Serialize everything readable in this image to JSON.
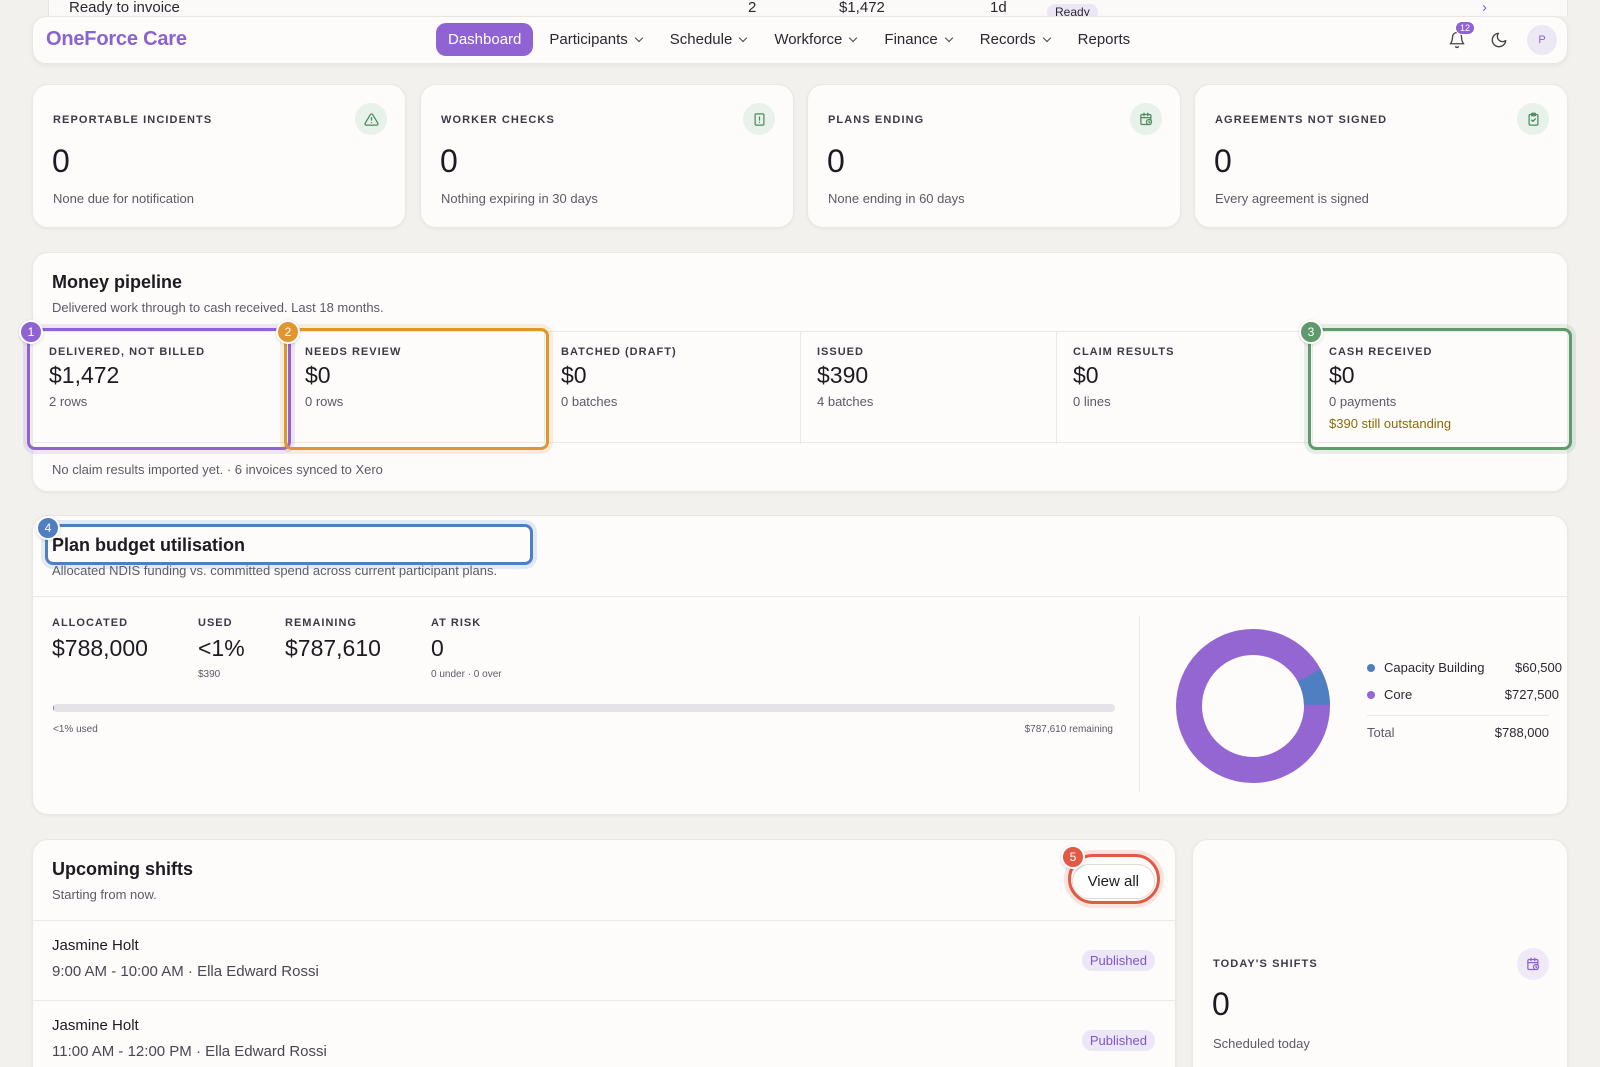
{
  "behind": {
    "label": "Ready to invoice",
    "count": "2",
    "amount": "$1,472",
    "age": "1d",
    "badge": "Ready",
    "chevron": "›"
  },
  "nav": {
    "brand": "OneForce Care",
    "items": [
      {
        "label": "Dashboard",
        "active": true
      },
      {
        "label": "Participants",
        "dropdown": true
      },
      {
        "label": "Schedule",
        "dropdown": true
      },
      {
        "label": "Workforce",
        "dropdown": true
      },
      {
        "label": "Finance",
        "dropdown": true
      },
      {
        "label": "Records",
        "dropdown": true
      },
      {
        "label": "Reports",
        "dropdown": false
      }
    ],
    "notification_count": "12",
    "avatar_initial": "P"
  },
  "stats": [
    {
      "label": "REPORTABLE INCIDENTS",
      "value": "0",
      "sub": "None due for notification",
      "icon": "alert-triangle-icon"
    },
    {
      "label": "WORKER CHECKS",
      "value": "0",
      "sub": "Nothing expiring in 30 days",
      "icon": "document-alert-icon"
    },
    {
      "label": "PLANS ENDING",
      "value": "0",
      "sub": "None ending in 60 days",
      "icon": "calendar-clock-icon"
    },
    {
      "label": "AGREEMENTS NOT SIGNED",
      "value": "0",
      "sub": "Every agreement is signed",
      "icon": "clipboard-check-icon"
    }
  ],
  "pipeline": {
    "title": "Money pipeline",
    "subtitle": "Delivered work through to cash received. Last 18 months.",
    "stages": [
      {
        "label": "DELIVERED, NOT BILLED",
        "value": "$1,472",
        "sub": "2 rows",
        "badge": "1"
      },
      {
        "label": "NEEDS REVIEW",
        "value": "$0",
        "sub": "0 rows",
        "badge": "2"
      },
      {
        "label": "BATCHED (DRAFT)",
        "value": "$0",
        "sub": "0 batches"
      },
      {
        "label": "ISSUED",
        "value": "$390",
        "sub": "4 batches"
      },
      {
        "label": "CLAIM RESULTS",
        "value": "$0",
        "sub": "0 lines"
      },
      {
        "label": "CASH RECEIVED",
        "value": "$0",
        "sub": "0 payments",
        "warn": "$390 still outstanding",
        "badge": "3"
      }
    ],
    "footer": "No claim results imported yet. · 6 invoices synced to Xero"
  },
  "budget": {
    "badge": "4",
    "title": "Plan budget utilisation",
    "subtitle": "Allocated NDIS funding vs. committed spend across current participant plans.",
    "allocated_label": "ALLOCATED",
    "allocated": "$788,000",
    "used_label": "USED",
    "used": "<1%",
    "used_amount": "$390",
    "remaining_label": "REMAINING",
    "remaining": "$787,610",
    "at_risk_label": "AT RISK",
    "at_risk": "0",
    "at_risk_sub": "0 under · 0 over",
    "progress_fraction": 0.0005,
    "progress_left": "<1% used",
    "progress_right": "$787,610 remaining",
    "legend": [
      {
        "name": "Capacity Building",
        "value": "$60,500",
        "amount": 60500,
        "color": "#4f7fc1"
      },
      {
        "name": "Core",
        "value": "$727,500",
        "amount": 727500,
        "color": "#9366d2"
      }
    ],
    "total_label": "Total",
    "total": "$788,000"
  },
  "shifts": {
    "title": "Upcoming shifts",
    "subtitle": "Starting from now.",
    "view_all": "View all",
    "badge": "5",
    "rows": [
      {
        "name": "Jasmine Holt",
        "time": "9:00 AM - 10:00 AM · Ella Edward Rossi",
        "status": "Published"
      },
      {
        "name": "Jasmine Holt",
        "time": "11:00 AM - 12:00 PM · Ella Edward Rossi",
        "status": "Published"
      }
    ]
  },
  "today": {
    "label": "TODAY'S SHIFTS",
    "value": "0",
    "sub": "Scheduled today",
    "icon": "calendar-clock-icon"
  },
  "colors": {
    "brand": "#8f63d3",
    "highlight_1": "#8f63d3",
    "highlight_2": "#e0952e",
    "highlight_3": "#5e9a6e",
    "highlight_4": "#4f7fc1",
    "highlight_5": "#e05a45"
  }
}
